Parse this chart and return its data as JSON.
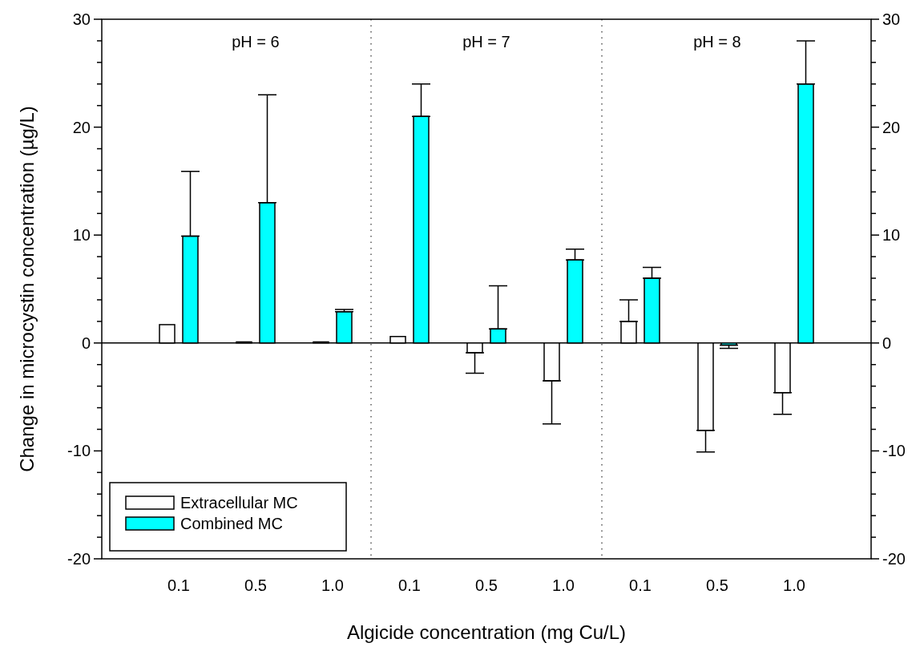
{
  "chart_data": {
    "type": "bar",
    "xlabel": "Algicide concentration (mg Cu/L)",
    "ylabel": "Change in microcystin concentration (µg/L)",
    "categories": [
      "0.1",
      "0.5",
      "1.0",
      "0.1",
      "0.5",
      "1.0",
      "0.1",
      "0.5",
      "1.0"
    ],
    "series": [
      {
        "name": "Extracellular MC",
        "color": "#ffffff",
        "values": [
          1.7,
          0.1,
          0.1,
          0.6,
          -0.9,
          -3.5,
          2.0,
          -8.1,
          -4.6
        ],
        "errors": [
          null,
          null,
          null,
          null,
          [
            -2.8,
            -0.9
          ],
          [
            -7.5,
            -3.5
          ],
          [
            2.0,
            4.0
          ],
          [
            -10.1,
            -8.1
          ],
          [
            -6.6,
            -4.6
          ]
        ]
      },
      {
        "name": "Combined MC",
        "color": "#00ffff",
        "values": [
          9.9,
          13.0,
          2.9,
          21.0,
          1.3,
          7.7,
          6.0,
          -0.2,
          24.0
        ],
        "errors": [
          [
            9.9,
            15.9
          ],
          [
            13.0,
            23.0
          ],
          [
            2.9,
            3.1
          ],
          [
            21.0,
            24.0
          ],
          [
            1.3,
            5.3
          ],
          [
            7.7,
            8.7
          ],
          [
            6.0,
            7.0
          ],
          [
            -0.5,
            -0.2
          ],
          [
            24.0,
            28.0
          ]
        ]
      }
    ],
    "ylim": [
      -20,
      30
    ],
    "yticks": [
      -20,
      {
        "value": -18,
        "label": null
      },
      {
        "value": -16,
        "label": null
      },
      {
        "value": -14,
        "label": null
      },
      {
        "value": -12,
        "label": null
      },
      -10,
      {
        "value": -8,
        "label": null
      },
      {
        "value": -6,
        "label": null
      },
      {
        "value": -4,
        "label": null
      },
      {
        "value": -2,
        "label": null
      },
      0,
      {
        "value": 2,
        "label": null
      },
      {
        "value": 4,
        "label": null
      },
      {
        "value": 6,
        "label": null
      },
      {
        "value": 8,
        "label": null
      },
      10,
      {
        "value": 12,
        "label": null
      },
      {
        "value": 14,
        "label": null
      },
      {
        "value": 16,
        "label": null
      },
      {
        "value": 18,
        "label": null
      },
      20,
      {
        "value": 22,
        "label": null
      },
      {
        "value": 24,
        "label": null
      },
      {
        "value": 26,
        "label": null
      },
      {
        "value": 28,
        "label": null
      },
      30
    ],
    "y2lim": [
      -20,
      30
    ],
    "y2ticks": [
      -20,
      {
        "value": -18,
        "label": null
      },
      {
        "value": -16,
        "label": null
      },
      {
        "value": -14,
        "label": null
      },
      {
        "value": -12,
        "label": null
      },
      -10,
      {
        "value": -8,
        "label": null
      },
      {
        "value": -6,
        "label": null
      },
      {
        "value": -4,
        "label": null
      },
      {
        "value": -2,
        "label": null
      },
      0,
      {
        "value": 2,
        "label": null
      },
      {
        "value": 4,
        "label": null
      },
      {
        "value": 6,
        "label": null
      },
      {
        "value": 8,
        "label": null
      },
      10,
      {
        "value": 12,
        "label": null
      },
      {
        "value": 14,
        "label": null
      },
      {
        "value": 16,
        "label": null
      },
      {
        "value": 18,
        "label": null
      },
      20,
      {
        "value": 22,
        "label": null
      },
      {
        "value": 24,
        "label": null
      },
      {
        "value": 26,
        "label": null
      },
      {
        "value": 28,
        "label": null
      },
      30
    ],
    "annotations": [
      "pH = 6",
      "pH = 7",
      "pH = 8"
    ],
    "legend": "bottom left",
    "grid": false
  }
}
